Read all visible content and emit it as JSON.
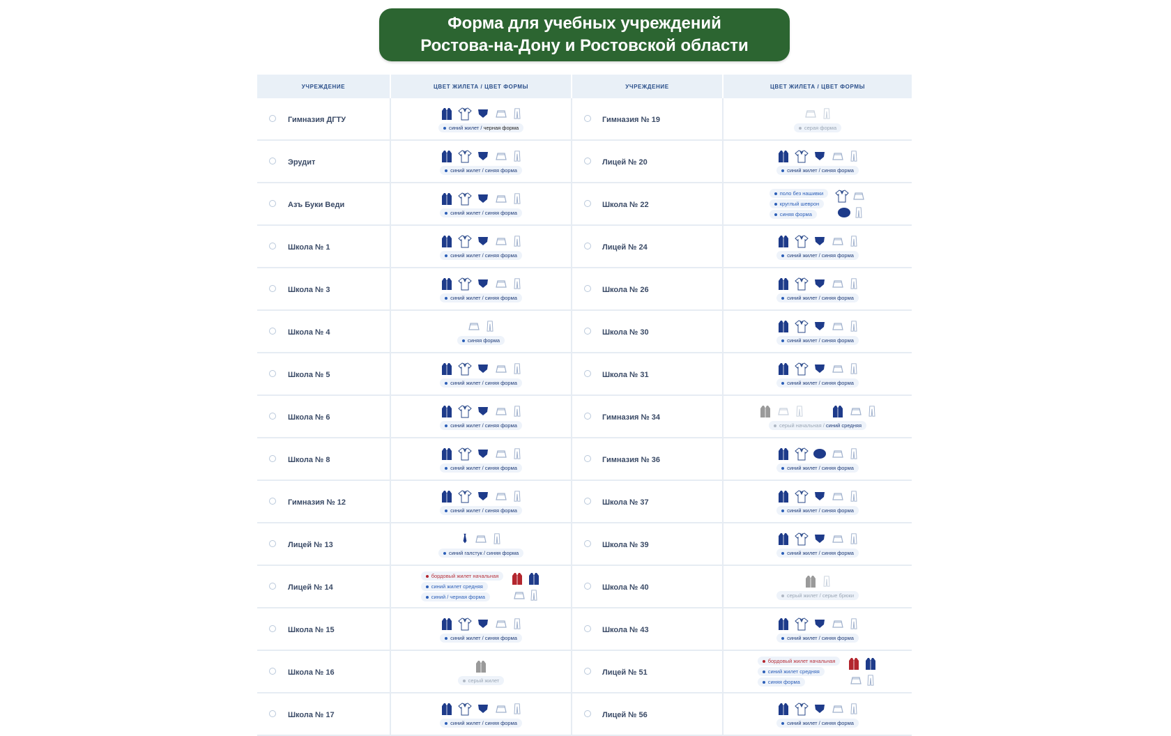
{
  "title": {
    "line1": "Форма для учебных учреждений",
    "line2": "Ростова-на-Дону и Ростовской области"
  },
  "headers": {
    "institution": "учреждение",
    "color": "цвет жилета / цвет формы"
  },
  "colors": {
    "banner": "#2c6531",
    "navy": "#1e3b8a",
    "burgundy": "#b3262e",
    "gray": "#9a9a9a",
    "caption_blue": "#2c5fb8"
  },
  "left_rows": [
    {
      "name": "Гимназия ДГТУ",
      "icons": "full",
      "caption_a": "синий жилет / ",
      "caption_b": "черная форма",
      "b_dark": true
    },
    {
      "name": "Эрудит",
      "icons": "full",
      "caption_a": "синий жилет / синяя форма",
      "caption_b": ""
    },
    {
      "name": "Азъ Буки Веди",
      "icons": "full",
      "caption_a": "синий жилет / синяя форма",
      "caption_b": ""
    },
    {
      "name": "Школа № 1",
      "icons": "full",
      "caption_a": "синий жилет / синяя форма",
      "caption_b": ""
    },
    {
      "name": "Школа № 3",
      "icons": "full",
      "caption_a": "синий жилет / синяя форма",
      "caption_b": ""
    },
    {
      "name": "Школа № 4",
      "icons": "outline",
      "caption_a": "синяя форма",
      "caption_b": ""
    },
    {
      "name": "Школа № 5",
      "icons": "full",
      "caption_a": "синий жилет / синяя форма",
      "caption_b": ""
    },
    {
      "name": "Школа № 6",
      "icons": "full",
      "caption_a": "синий жилет / синяя форма",
      "caption_b": ""
    },
    {
      "name": "Школа № 8",
      "icons": "full",
      "caption_a": "синий жилет / синяя форма",
      "caption_b": ""
    },
    {
      "name": "Гимназия № 12",
      "icons": "full",
      "caption_a": "синий жилет / синяя форма",
      "caption_b": ""
    },
    {
      "name": "Лицей № 13",
      "icons": "tie",
      "caption_a": "синий галстук / синяя форма",
      "caption_b": ""
    },
    {
      "name": "Лицей № 14",
      "icons": "multi",
      "multi": [
        "бордовый жилет начальная",
        "синий жилет средняя",
        "синий / черная форма"
      ]
    },
    {
      "name": "Школа № 15",
      "icons": "full",
      "caption_a": "синий жилет / синяя форма",
      "caption_b": ""
    },
    {
      "name": "Школа № 16",
      "icons": "grayvest",
      "caption_a": "серый жилет",
      "caption_b": "",
      "a_gray": true
    },
    {
      "name": "Школа № 17",
      "icons": "full",
      "caption_a": "синий жилет / синяя форма",
      "caption_b": ""
    }
  ],
  "right_rows": [
    {
      "name": "Гимназия № 19",
      "icons": "grayoutline",
      "caption_a": "серая форма",
      "caption_b": "",
      "a_gray": true
    },
    {
      "name": "Лицей № 20",
      "icons": "full",
      "caption_a": "синий жилет / синяя форма",
      "caption_b": ""
    },
    {
      "name": "Школа № 22",
      "icons": "polo",
      "multi": [
        "поло без нашивки",
        "круглый шеврон",
        "синяя форма"
      ]
    },
    {
      "name": "Лицей № 24",
      "icons": "full",
      "caption_a": "синий жилет / синяя форма",
      "caption_b": ""
    },
    {
      "name": "Школа № 26",
      "icons": "full",
      "caption_a": "синий жилет / синяя форма",
      "caption_b": ""
    },
    {
      "name": "Школа № 30",
      "icons": "full",
      "caption_a": "синий жилет / синяя форма",
      "caption_b": ""
    },
    {
      "name": "Школа № 31",
      "icons": "full",
      "caption_a": "синий жилет / синяя форма",
      "caption_b": ""
    },
    {
      "name": "Гимназия № 34",
      "icons": "split",
      "caption_a": "серый начальная / ",
      "caption_b": "синий средняя",
      "a_gray": true
    },
    {
      "name": "Гимназия № 36",
      "icons": "fullround",
      "caption_a": "синий жилет / синяя форма",
      "caption_b": ""
    },
    {
      "name": "Школа № 37",
      "icons": "full",
      "caption_a": "синий жилет / синяя форма",
      "caption_b": ""
    },
    {
      "name": "Школа № 39",
      "icons": "full",
      "caption_a": "синий жилет / синяя форма",
      "caption_b": ""
    },
    {
      "name": "Школа № 40",
      "icons": "grayvestpants",
      "caption_a": "серый жилет / серые брюки",
      "caption_b": "",
      "a_gray": true
    },
    {
      "name": "Школа № 43",
      "icons": "full",
      "caption_a": "синий жилет / синяя форма",
      "caption_b": ""
    },
    {
      "name": "Лицей № 51",
      "icons": "multi",
      "multi": [
        "бордовый жилет начальная",
        "синий жилет средняя",
        "синяя форма"
      ]
    },
    {
      "name": "Лицей № 56",
      "icons": "full",
      "caption_a": "синий жилет / синяя форма",
      "caption_b": ""
    }
  ]
}
